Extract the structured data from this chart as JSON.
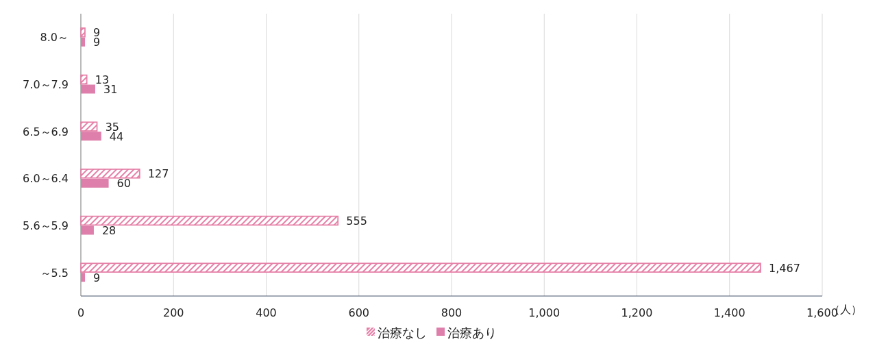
{
  "chart_data": {
    "type": "bar",
    "orientation": "horizontal",
    "categories": [
      "8.0～",
      "7.0～7.9",
      "6.5～6.9",
      "6.0～6.4",
      "5.6～5.9",
      "～5.5"
    ],
    "series": [
      {
        "name": "治療なし",
        "color": "#e57fa6",
        "values": [
          9,
          13,
          35,
          127,
          555,
          1467
        ],
        "value_labels": [
          "9",
          "13",
          "35",
          "127",
          "555",
          "1,467"
        ]
      },
      {
        "name": "治療あり",
        "color": "#de7fab",
        "values": [
          9,
          31,
          44,
          60,
          28,
          9
        ],
        "value_labels": [
          "9",
          "31",
          "44",
          "60",
          "28",
          "9"
        ]
      }
    ],
    "xlim": [
      0,
      1600
    ],
    "xticks": [
      0,
      200,
      400,
      600,
      800,
      {
        "value": 1000,
        "label": "1,000"
      },
      {
        "value": 1200,
        "label": "1,200"
      },
      {
        "value": 1400,
        "label": "1,400"
      },
      {
        "value": 1600,
        "label": "1,600"
      }
    ],
    "xlabel": "（人）",
    "grid": "x",
    "legend": "bottom"
  }
}
